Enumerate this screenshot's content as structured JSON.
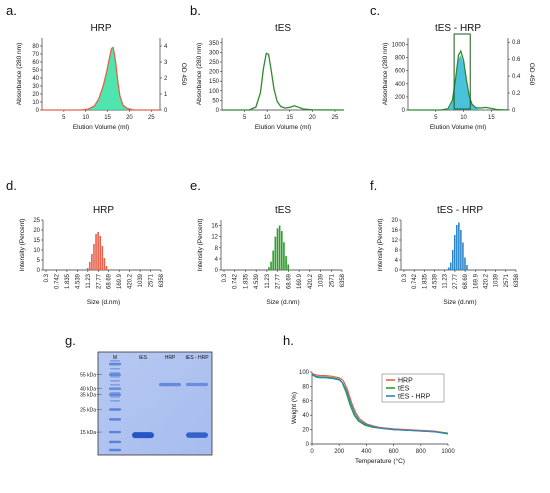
{
  "panel_labels": [
    "a.",
    "b.",
    "c.",
    "d.",
    "e.",
    "f.",
    "g.",
    "h."
  ],
  "chart_data": [
    {
      "id": "a",
      "type": "line",
      "title": "HRP",
      "xlabel": "Elution Volume (ml)",
      "ylabel": "Absorbance (280 nm)",
      "y2label": "OD 450",
      "xlim": [
        0,
        27
      ],
      "ylim": [
        0,
        90
      ],
      "y2lim": [
        0,
        4.5
      ],
      "xticks": [
        5,
        10,
        15,
        20,
        25
      ],
      "yticks": [
        0,
        10,
        20,
        30,
        40,
        50,
        60,
        70,
        80
      ],
      "y2ticks": [
        0,
        1,
        2,
        3,
        4
      ],
      "series": [
        {
          "color": "#e8604a",
          "fill": false,
          "x": [
            0,
            9,
            10.5,
            12,
            13,
            14,
            14.8,
            15.4,
            15.9,
            16.3,
            16.8,
            17.3,
            17.8,
            18.5,
            19.5,
            21,
            27
          ],
          "y": [
            0,
            0,
            1,
            5,
            14,
            30,
            48,
            64,
            77,
            78,
            62,
            38,
            18,
            6,
            2,
            0,
            0
          ]
        },
        {
          "color": "#2fe0a0",
          "fill": true,
          "x": [
            10,
            11,
            12,
            13,
            14,
            14.8,
            15.4,
            15.9,
            16.3,
            16.8,
            17.3,
            17.8,
            18.5,
            19.5
          ],
          "y": [
            0.0,
            0.15,
            0.3,
            0.7,
            1.5,
            2.4,
            3.2,
            3.8,
            3.85,
            3.1,
            1.9,
            0.9,
            0.3,
            0.05
          ]
        }
      ]
    },
    {
      "id": "b",
      "type": "line",
      "title": "tES",
      "xlabel": "Elution Volume (ml)",
      "ylabel": "Absorbance (280 nm)",
      "xlim": [
        0,
        27
      ],
      "ylim": [
        0,
        375
      ],
      "xticks": [
        5,
        10,
        15,
        20,
        25
      ],
      "yticks": [
        0,
        50,
        100,
        150,
        200,
        250,
        300,
        350
      ],
      "series": [
        {
          "color": "#2e8b2e",
          "fill": false,
          "x": [
            0,
            6,
            7.5,
            8.5,
            9.2,
            9.8,
            10.3,
            10.8,
            11.5,
            12.2,
            13,
            14,
            15,
            16,
            17,
            18,
            20,
            27
          ],
          "y": [
            0,
            0,
            15,
            90,
            220,
            295,
            290,
            220,
            110,
            45,
            18,
            10,
            14,
            22,
            14,
            5,
            1,
            0
          ]
        }
      ]
    },
    {
      "id": "c",
      "type": "line",
      "title": "tES - HRP",
      "xlabel": "Elution Volume (ml)",
      "ylabel": "Absorbance (280 nm)",
      "y2label": "OD 450",
      "xlim": [
        0,
        18
      ],
      "ylim": [
        0,
        1100
      ],
      "y2lim": [
        0,
        0.85
      ],
      "xticks": [
        5,
        10,
        15
      ],
      "yticks": [
        0,
        200,
        400,
        600,
        800,
        1000
      ],
      "y2ticks": [
        0,
        0.2,
        0.4,
        0.6,
        0.8
      ],
      "box": [
        8.3,
        11.2
      ],
      "series": [
        {
          "color": "#2e8b2e",
          "fill": false,
          "x": [
            0,
            6,
            7.2,
            8,
            8.6,
            9.1,
            9.5,
            10,
            10.5,
            11,
            11.5,
            12.2,
            13,
            14,
            15,
            16,
            18
          ],
          "y": [
            0,
            0,
            20,
            150,
            500,
            840,
            900,
            760,
            470,
            220,
            90,
            35,
            30,
            40,
            25,
            8,
            0
          ]
        },
        {
          "color": "#2ab7d6",
          "fill": true,
          "x": [
            6.8,
            7.5,
            8,
            8.6,
            9.1,
            9.5,
            10,
            10.5,
            11,
            11.5,
            12.2,
            13.2
          ],
          "y": [
            0,
            0.03,
            0.1,
            0.36,
            0.6,
            0.65,
            0.55,
            0.34,
            0.16,
            0.06,
            0.02,
            0
          ]
        }
      ]
    },
    {
      "id": "d",
      "type": "bar",
      "title": "HRP",
      "color": "#e8604a",
      "xlabel": "Size (d.nm)",
      "ylabel": "Intensity (Percent)",
      "ylim": [
        0,
        25
      ],
      "yticks": [
        0,
        5,
        10,
        15,
        20,
        25
      ],
      "xticklabels": [
        "0.3",
        "0.742",
        "1.835",
        "4.539",
        "11.23",
        "27.77",
        "68.69",
        "169.9",
        "420.2",
        "1039",
        "2571",
        "6358"
      ],
      "bins": [
        4.0,
        4.2,
        4.4,
        4.6,
        4.8,
        5.0,
        5.2,
        5.4,
        5.6,
        5.8
      ],
      "values": [
        1,
        4,
        8,
        13,
        18,
        19,
        17,
        12,
        6,
        2
      ]
    },
    {
      "id": "e",
      "type": "bar",
      "title": "tES",
      "color": "#2e9e2e",
      "xlabel": "Size (d.nm)",
      "ylabel": "Intensity (Percent)",
      "ylim": [
        0,
        18
      ],
      "yticks": [
        0,
        4,
        8,
        12,
        16
      ],
      "xticklabels": [
        "0.3",
        "0.742",
        "1.835",
        "4.539",
        "11.23",
        "27.77",
        "68.69",
        "169.9",
        "420.2",
        "1039",
        "2571",
        "6358"
      ],
      "bins": [
        4.2,
        4.4,
        4.6,
        4.8,
        5.0,
        5.2,
        5.4,
        5.6,
        5.8,
        6.0
      ],
      "values": [
        1,
        3,
        7,
        12,
        15,
        16,
        14,
        10,
        5,
        2
      ]
    },
    {
      "id": "f",
      "type": "bar",
      "title": "tES - HRP",
      "color": "#2a86c8",
      "xlabel": "Size (d.nm)",
      "ylabel": "Intensity (Percent)",
      "ylim": [
        0,
        20
      ],
      "yticks": [
        0,
        4,
        8,
        12,
        16,
        20
      ],
      "xticklabels": [
        "0.3",
        "0.742",
        "1.835",
        "4.539",
        "11.23",
        "27.77",
        "68.69",
        "169.9",
        "420.2",
        "1039",
        "2571",
        "6358"
      ],
      "bins": [
        4.4,
        4.6,
        4.8,
        5.0,
        5.2,
        5.4,
        5.6,
        5.8,
        6.0,
        6.2
      ],
      "values": [
        1,
        3,
        8,
        14,
        18,
        19,
        16,
        11,
        5,
        2
      ]
    },
    {
      "id": "h",
      "type": "line",
      "xlabel": "Temperature (°C)",
      "ylabel": "Weight (%)",
      "xlim": [
        0,
        1000
      ],
      "ylim": [
        0,
        100
      ],
      "xticks": [
        0,
        200,
        400,
        600,
        800,
        1000
      ],
      "yticks": [
        0,
        20,
        40,
        60,
        80,
        100
      ],
      "legend": "top-right",
      "series": [
        {
          "name": "HRP",
          "color": "#e8604a",
          "x": [
            0,
            30,
            60,
            100,
            150,
            200,
            230,
            260,
            290,
            320,
            350,
            400,
            450,
            500,
            600,
            700,
            800,
            900,
            1000
          ],
          "y": [
            98,
            96,
            95,
            95,
            94,
            92,
            88,
            76,
            58,
            44,
            35,
            28,
            25,
            23,
            21,
            20,
            19,
            18,
            15
          ]
        },
        {
          "name": "tES",
          "color": "#2e9e2e",
          "x": [
            0,
            30,
            60,
            100,
            150,
            200,
            220,
            250,
            280,
            310,
            340,
            390,
            450,
            500,
            600,
            700,
            800,
            900,
            1000
          ],
          "y": [
            97,
            94,
            93,
            93,
            92,
            90,
            86,
            72,
            54,
            40,
            32,
            26,
            23,
            22,
            20,
            19,
            18,
            17,
            15
          ]
        },
        {
          "name": "tES - HRP",
          "color": "#2a86c8",
          "x": [
            0,
            30,
            60,
            100,
            150,
            200,
            225,
            255,
            285,
            315,
            345,
            395,
            450,
            500,
            600,
            700,
            800,
            900,
            1000
          ],
          "y": [
            96,
            93,
            92,
            92,
            91,
            89,
            85,
            74,
            56,
            42,
            33,
            27,
            24,
            22,
            20,
            19,
            18,
            17,
            14
          ]
        }
      ]
    }
  ],
  "gel": {
    "lane_labels": [
      "M",
      "tES",
      "HRP",
      "tES - HRP"
    ],
    "marker_labels": [
      "55 kDa",
      "40 kDa",
      "35 kDa",
      "25 kDa",
      "15 kDa"
    ],
    "marker_kda": [
      55,
      40,
      35,
      25,
      15
    ],
    "bands": [
      {
        "lane": 1,
        "kda": 14,
        "strength": 1.0
      },
      {
        "lane": 2,
        "kda": 44,
        "strength": 0.35
      },
      {
        "lane": 3,
        "kda": 44,
        "strength": 0.3
      },
      {
        "lane": 3,
        "kda": 14,
        "strength": 0.85
      }
    ]
  }
}
